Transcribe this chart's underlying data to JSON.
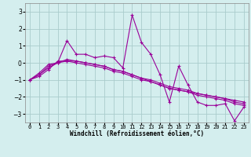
{
  "xlabel": "Windchill (Refroidissement éolien,°C)",
  "bg_color": "#d4eeee",
  "line_color": "#990099",
  "grid_color": "#aacccc",
  "x_values": [
    0,
    1,
    2,
    3,
    4,
    5,
    6,
    7,
    8,
    9,
    10,
    11,
    12,
    13,
    14,
    15,
    16,
    17,
    18,
    19,
    20,
    21,
    22,
    23
  ],
  "series": [
    [
      -1.0,
      -0.6,
      -0.1,
      0.0,
      1.3,
      0.5,
      0.5,
      0.3,
      0.4,
      0.3,
      -0.3,
      2.8,
      1.2,
      0.5,
      -0.7,
      -2.3,
      -0.2,
      -1.3,
      -2.3,
      -2.5,
      -2.5,
      -2.4,
      -3.4,
      -2.6
    ],
    [
      -1.0,
      -0.8,
      -0.4,
      0.1,
      0.1,
      0.1,
      0.0,
      -0.1,
      -0.2,
      -0.4,
      -0.5,
      -0.7,
      -0.9,
      -1.1,
      -1.3,
      -1.5,
      -1.6,
      -1.7,
      -1.8,
      -1.9,
      -2.0,
      -2.1,
      -2.2,
      -2.3
    ],
    [
      -1.0,
      -0.7,
      -0.3,
      0.0,
      0.1,
      0.0,
      -0.1,
      -0.2,
      -0.3,
      -0.5,
      -0.6,
      -0.8,
      -1.0,
      -1.1,
      -1.3,
      -1.5,
      -1.6,
      -1.7,
      -1.9,
      -2.0,
      -2.1,
      -2.2,
      -2.4,
      -2.5
    ],
    [
      -1.0,
      -0.7,
      -0.2,
      0.0,
      0.2,
      0.1,
      0.0,
      -0.1,
      -0.2,
      -0.4,
      -0.5,
      -0.7,
      -0.9,
      -1.0,
      -1.2,
      -1.4,
      -1.5,
      -1.6,
      -1.8,
      -1.9,
      -2.0,
      -2.1,
      -2.3,
      -2.4
    ]
  ],
  "ylim": [
    -3.5,
    3.5
  ],
  "xlim": [
    -0.5,
    23.5
  ],
  "yticks": [
    -3,
    -2,
    -1,
    0,
    1,
    2,
    3
  ],
  "xtick_labels": [
    "0",
    "1",
    "2",
    "3",
    "4",
    "5",
    "6",
    "7",
    "8",
    "9",
    "10",
    "11",
    "12",
    "13",
    "14",
    "15",
    "16",
    "17",
    "18",
    "19",
    "20",
    "21",
    "22",
    "23"
  ],
  "marker": "+",
  "markersize": 3,
  "linewidth": 0.8,
  "tick_fontsize": 5,
  "xlabel_fontsize": 5.5
}
